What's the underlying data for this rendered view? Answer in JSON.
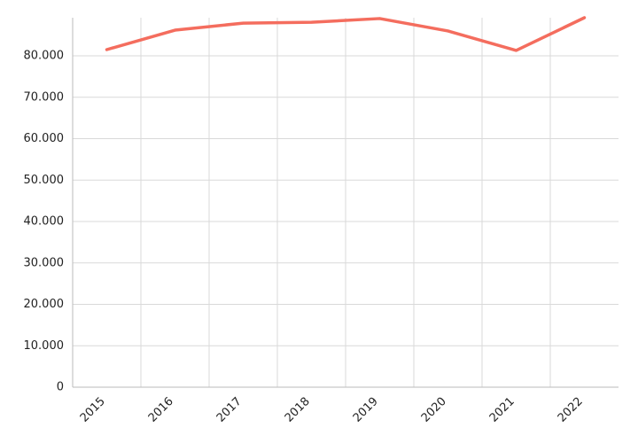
{
  "chart_data": {
    "type": "line",
    "categories": [
      "2015",
      "2016",
      "2017",
      "2018",
      "2019",
      "2020",
      "2021",
      "2022"
    ],
    "values": [
      81500,
      86200,
      87900,
      88100,
      89000,
      86000,
      81300,
      89200
    ],
    "color": "#f46d5e",
    "ylim": [
      0,
      89200
    ],
    "yticks": [
      0,
      {
        "value": 10000,
        "label": "10.000"
      },
      {
        "value": 20000,
        "label": "20.000"
      },
      {
        "value": 30000,
        "label": "30.000"
      },
      {
        "value": 40000,
        "label": "40.000"
      },
      {
        "value": 50000,
        "label": "50.000"
      },
      {
        "value": 60000,
        "label": "60.000"
      },
      {
        "value": 70000,
        "label": "70.000"
      },
      {
        "value": 80000,
        "label": "80.000"
      }
    ],
    "grid": true
  }
}
